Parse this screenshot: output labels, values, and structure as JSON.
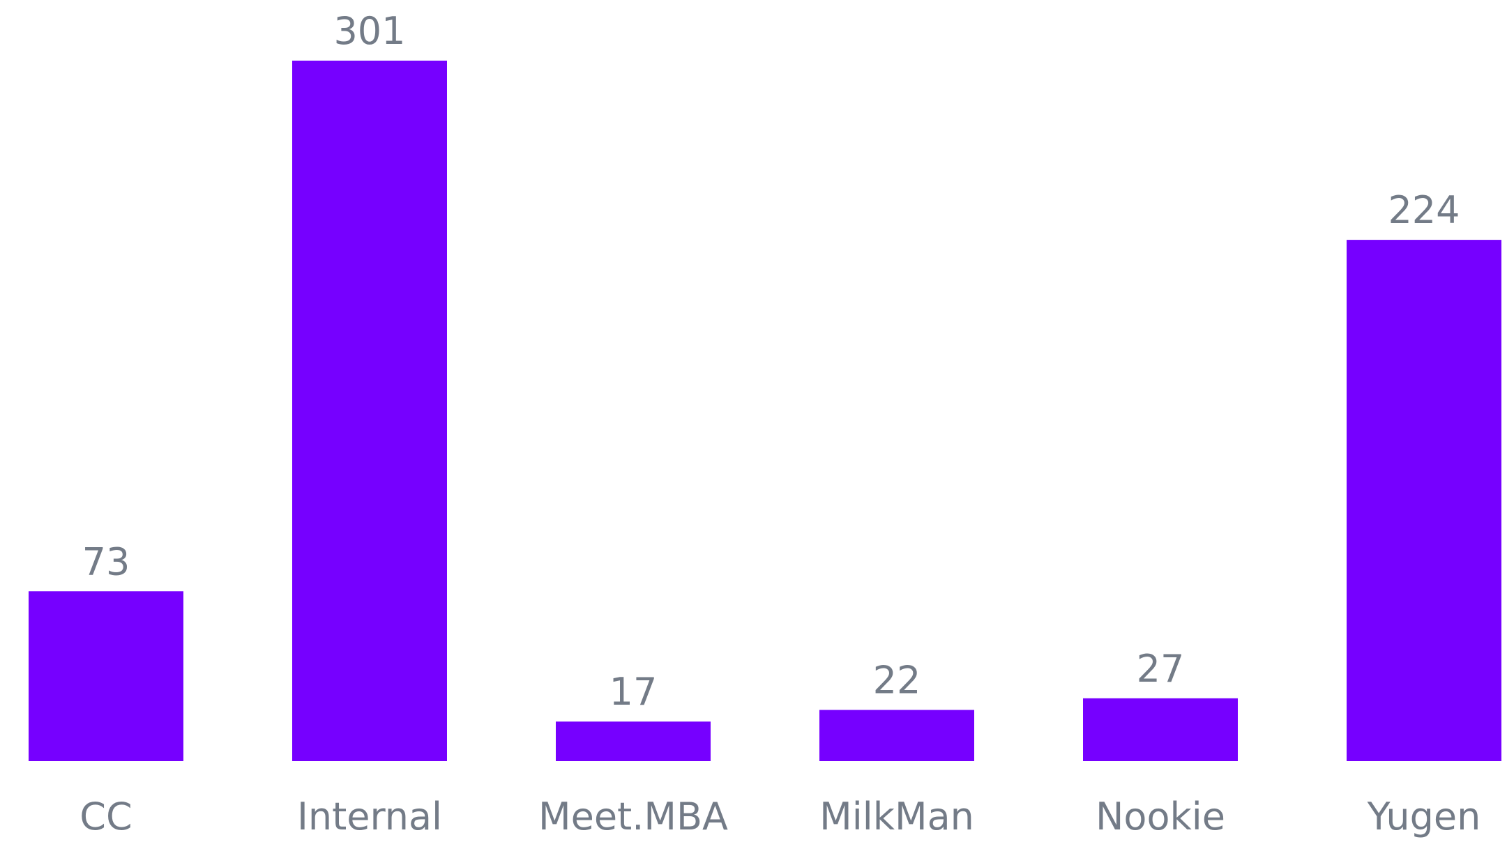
{
  "chart_data": {
    "type": "bar",
    "categories": [
      "CC",
      "Internal",
      "Meet.MBA",
      "MilkMan",
      "Nookie",
      "Yugen"
    ],
    "values": [
      73,
      301,
      17,
      22,
      27,
      224
    ],
    "color": "#7600ff"
  }
}
